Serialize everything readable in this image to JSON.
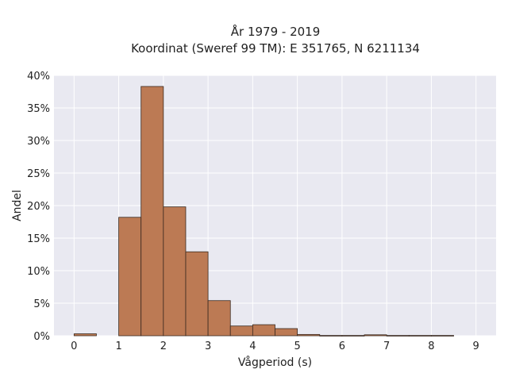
{
  "chart_data": {
    "type": "bar",
    "title_line1": "År 1979 - 2019",
    "title_line2": "Koordinat (Sweref 99 TM): E 351765, N 6211134",
    "xlabel": "Vågperiod (s)",
    "ylabel": "Andel",
    "xlim": [
      -0.45,
      9.45
    ],
    "ylim": [
      0,
      0.4
    ],
    "x_ticks": [
      0,
      1,
      2,
      3,
      4,
      5,
      6,
      7,
      8,
      9
    ],
    "y_ticks": [
      0,
      0.05,
      0.1,
      0.15,
      0.2,
      0.25,
      0.3,
      0.35,
      0.4
    ],
    "y_tick_labels": [
      "0%",
      "5%",
      "10%",
      "15%",
      "20%",
      "25%",
      "30%",
      "35%",
      "40%"
    ],
    "bin_width": 0.5,
    "bins": [
      {
        "x0": 0.0,
        "value": 0.003
      },
      {
        "x0": 0.5,
        "value": 0.0
      },
      {
        "x0": 1.0,
        "value": 0.182
      },
      {
        "x0": 1.5,
        "value": 0.383
      },
      {
        "x0": 2.0,
        "value": 0.198
      },
      {
        "x0": 2.5,
        "value": 0.129
      },
      {
        "x0": 3.0,
        "value": 0.054
      },
      {
        "x0": 3.5,
        "value": 0.015
      },
      {
        "x0": 4.0,
        "value": 0.017
      },
      {
        "x0": 4.5,
        "value": 0.011
      },
      {
        "x0": 5.0,
        "value": 0.002
      },
      {
        "x0": 5.5,
        "value": 0.0005
      },
      {
        "x0": 6.0,
        "value": 0.0005
      },
      {
        "x0": 6.5,
        "value": 0.0015
      },
      {
        "x0": 7.0,
        "value": 0.0005
      },
      {
        "x0": 7.5,
        "value": 0.0005
      },
      {
        "x0": 8.0,
        "value": 0.0005
      }
    ],
    "grid": true,
    "colors": {
      "bar_fill": "#BC7A54",
      "bar_stroke": "#3A2A20",
      "plot_background": "#E9E9F1",
      "grid": "#FFFFFF"
    }
  }
}
